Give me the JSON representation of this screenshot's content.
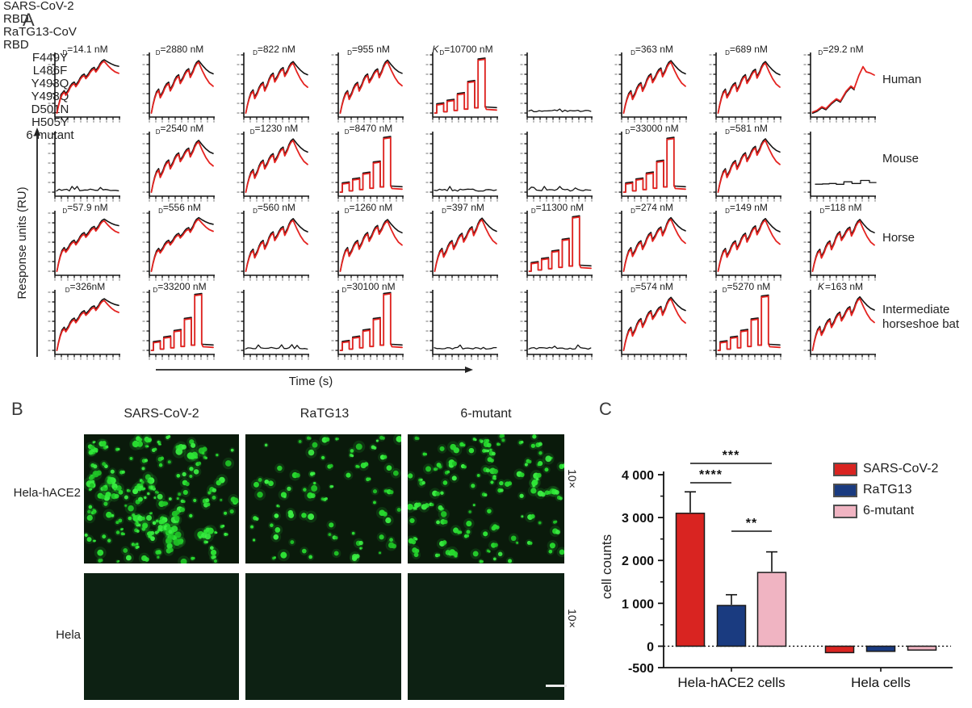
{
  "figure": {
    "panel_a_label": "A",
    "panel_b_label": "B",
    "panel_c_label": "C"
  },
  "panelA": {
    "col_headers": [
      [
        "SARS-CoV-2",
        "RBD"
      ],
      [
        "RaTG13-CoV",
        "RBD"
      ],
      [
        "F449Y"
      ],
      [
        "L486F"
      ],
      [
        "Y493Q"
      ],
      [
        "Y498Q"
      ],
      [
        "D501N"
      ],
      [
        "H505Y"
      ],
      [
        "6-mutant"
      ]
    ],
    "row_labels": [
      [
        "Human"
      ],
      [
        "Mouse"
      ],
      [
        "Horse"
      ],
      [
        "Intermediate",
        "horseshoe bat"
      ]
    ],
    "y_axis_label": "Response units (RU)",
    "x_axis_label": "Time (s)",
    "rows": [
      {
        "cells": [
          {
            "k": "",
            "sub": "D",
            "val": "=14.1 nM",
            "profile": "smooth"
          },
          {
            "k": "",
            "sub": "D",
            "val": "=2880 nM",
            "profile": "spiky"
          },
          {
            "k": "",
            "sub": "D",
            "val": "=822 nM",
            "profile": "spiky"
          },
          {
            "k": "",
            "sub": "D",
            "val": "=955 nM",
            "profile": "spiky"
          },
          {
            "k": "K",
            "sub": "D",
            "val": "=10700 nM",
            "profile": "square"
          },
          {
            "k": "",
            "sub": "",
            "val": "",
            "profile": "flat"
          },
          {
            "k": "",
            "sub": "D",
            "val": "=363 nM",
            "profile": "spiky"
          },
          {
            "k": "",
            "sub": "D",
            "val": "=689 nM",
            "profile": "spiky"
          },
          {
            "k": "",
            "sub": "D",
            "val": "=29.2 nM",
            "profile": "risered"
          }
        ]
      },
      {
        "cells": [
          {
            "k": "",
            "sub": "",
            "val": "",
            "profile": "flat"
          },
          {
            "k": "",
            "sub": "D",
            "val": "=2540 nM",
            "profile": "spiky"
          },
          {
            "k": "",
            "sub": "D",
            "val": "=1230 nM",
            "profile": "spiky"
          },
          {
            "k": "",
            "sub": "D",
            "val": "=8470 nM",
            "profile": "square"
          },
          {
            "k": "",
            "sub": "",
            "val": "",
            "profile": "flat"
          },
          {
            "k": "",
            "sub": "",
            "val": "",
            "profile": "flat"
          },
          {
            "k": "",
            "sub": "D",
            "val": "=33000 nM",
            "profile": "square"
          },
          {
            "k": "",
            "sub": "D",
            "val": "=581 nM",
            "profile": "spiky"
          },
          {
            "k": "",
            "sub": "",
            "val": "",
            "profile": "noisesteps"
          }
        ]
      },
      {
        "cells": [
          {
            "k": "",
            "sub": "D",
            "val": "=57.9 nM",
            "profile": "smooth"
          },
          {
            "k": "",
            "sub": "D",
            "val": "=556 nM",
            "profile": "smooth"
          },
          {
            "k": "",
            "sub": "D",
            "val": "=560 nM",
            "profile": "spiky"
          },
          {
            "k": "",
            "sub": "D",
            "val": "=1260 nM",
            "profile": "spiky"
          },
          {
            "k": "",
            "sub": "D",
            "val": "=397 nM",
            "profile": "spiky"
          },
          {
            "k": "",
            "sub": "D",
            "val": "=11300 nM",
            "profile": "square"
          },
          {
            "k": "",
            "sub": "D",
            "val": "=274 nM",
            "profile": "spiky"
          },
          {
            "k": "",
            "sub": "D",
            "val": "=149 nM",
            "profile": "spiky"
          },
          {
            "k": "",
            "sub": "D",
            "val": "=118 nM",
            "profile": "spiky"
          }
        ]
      },
      {
        "cells": [
          {
            "k": "",
            "sub": "D",
            "val": "=326nM",
            "profile": "smooth"
          },
          {
            "k": "",
            "sub": "D",
            "val": "=33200 nM",
            "profile": "square"
          },
          {
            "k": "",
            "sub": "",
            "val": "",
            "profile": "flat"
          },
          {
            "k": "",
            "sub": "D",
            "val": "=30100 nM",
            "profile": "square"
          },
          {
            "k": "",
            "sub": "",
            "val": "",
            "profile": "flat"
          },
          {
            "k": "",
            "sub": "",
            "val": "",
            "profile": "flat"
          },
          {
            "k": "",
            "sub": "D",
            "val": "=574 nM",
            "profile": "spiky"
          },
          {
            "k": "",
            "sub": "D",
            "val": "=5270 nM",
            "profile": "square"
          },
          {
            "k": "K",
            "sub": "",
            "val": "=163 nM",
            "profile": "spiky"
          }
        ]
      }
    ]
  },
  "panelB": {
    "col_headers": [
      "SARS-CoV-2",
      "RaTG13",
      "6-mutant"
    ],
    "row_labels": [
      "Hela-hACE2",
      "Hela"
    ],
    "magnification": "10×",
    "cell_density": [
      [
        150,
        85,
        128
      ],
      [
        0,
        0,
        0
      ]
    ]
  },
  "chart_data": {
    "type": "bar",
    "ylabel": "cell counts",
    "categories": [
      "Hela-hACE2 cells",
      "Hela cells"
    ],
    "series": [
      {
        "name": "SARS-CoV-2",
        "color": "#d92421",
        "values": [
          3100,
          -150
        ],
        "errors": [
          500,
          0
        ]
      },
      {
        "name": "RaTG13",
        "color": "#1a3b80",
        "values": [
          950,
          -120
        ],
        "errors": [
          250,
          0
        ]
      },
      {
        "name": "6-mutant",
        "color": "#f0b4c2",
        "values": [
          1720,
          -90
        ],
        "errors": [
          480,
          0
        ]
      }
    ],
    "ylim": [
      -500,
      4000
    ],
    "yticks": [
      {
        "v": 4000,
        "label": "4 000"
      },
      {
        "v": 3000,
        "label": "3 000"
      },
      {
        "v": 2000,
        "label": "2 000"
      },
      {
        "v": 1000,
        "label": "1 000"
      },
      {
        "v": 0,
        "label": "0"
      },
      {
        "v": -500,
        "label": "-500"
      }
    ],
    "minor_ticks": [
      3500,
      2500,
      1500,
      500
    ],
    "zero_line": "dotted",
    "significance": [
      {
        "from": "SARS-CoV-2",
        "to": "6-mutant",
        "stars": "***"
      },
      {
        "from": "SARS-CoV-2",
        "to": "RaTG13",
        "stars": "****"
      },
      {
        "from": "RaTG13",
        "to": "6-mutant",
        "stars": "**"
      }
    ],
    "legend_position": "right"
  },
  "colors": {
    "sensor_red": "#e42320",
    "sensor_black": "#141414",
    "cell_green": "#2ee636",
    "bg_dark_top": "#0a1a0b",
    "bg_dark_bottom": "#0d2113"
  }
}
